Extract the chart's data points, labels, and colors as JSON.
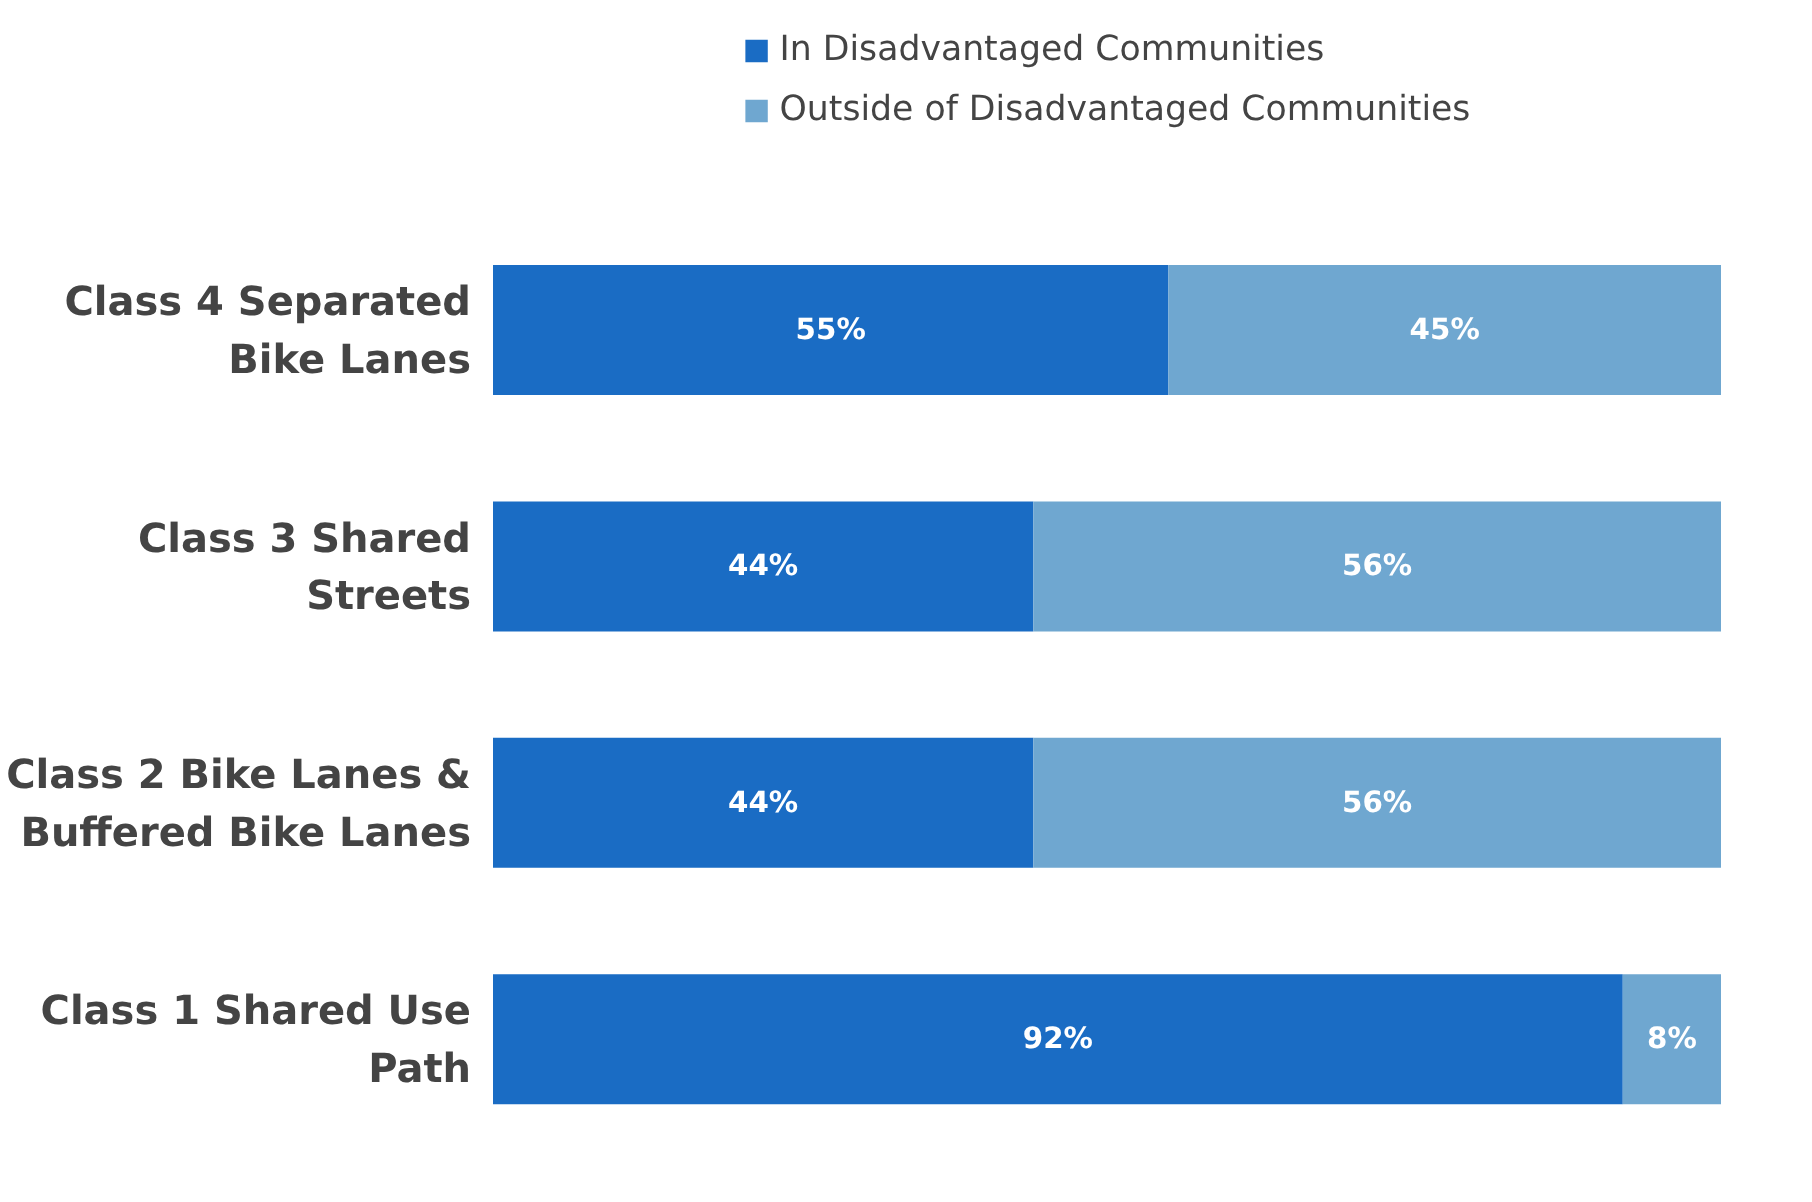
{
  "chart_data": {
    "type": "bar",
    "orientation": "horizontal",
    "stacked": true,
    "legend": "top",
    "categories": [
      "Class 4 Separated Bike Lanes",
      "Class 3 Shared Streets",
      "Class 2 Bike Lanes & Buffered Bike Lanes",
      "Class 1 Shared Use Path"
    ],
    "series": [
      {
        "name": "In Disadvantaged Communities",
        "color": "#1a6cc4",
        "values": [
          55,
          44,
          44,
          92
        ],
        "value_labels": [
          "55%",
          "44%",
          "44%",
          "92%"
        ]
      },
      {
        "name": "Outside of Disadvantaged Communities",
        "color": "#6fa7d0",
        "values": [
          45,
          56,
          56,
          8
        ],
        "value_labels": [
          "45%",
          "56%",
          "56%",
          "8%"
        ]
      }
    ]
  }
}
